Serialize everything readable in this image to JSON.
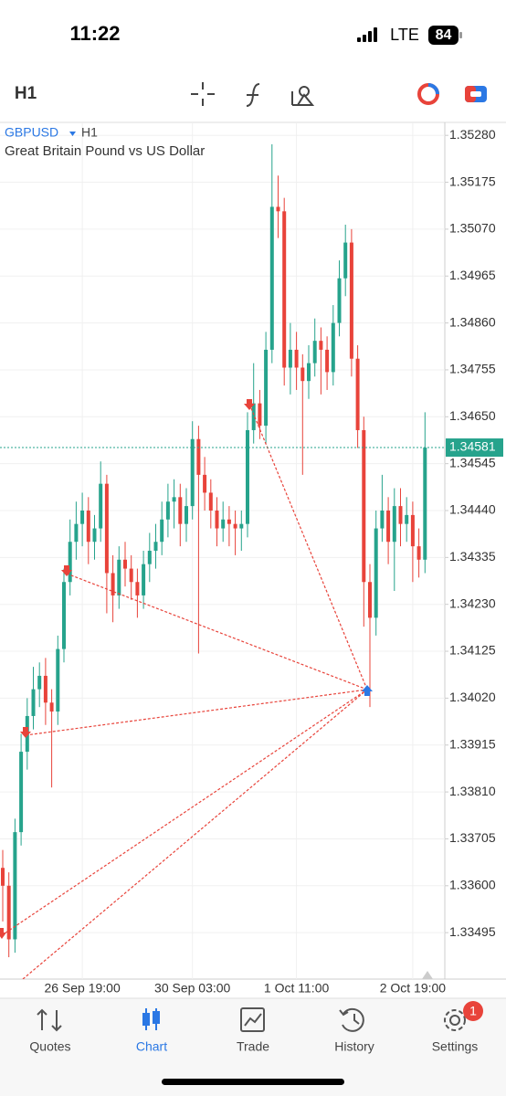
{
  "status_bar": {
    "time": "11:22",
    "network": "LTE",
    "battery": "84"
  },
  "toolbar": {
    "timeframe": "H1"
  },
  "chart_data": {
    "type": "candlestick",
    "symbol": "GBPUSD",
    "timeframe": "H1",
    "subtitle": "Great Britain Pound vs US Dollar",
    "up_color": "#26a38c",
    "down_color": "#e8433a",
    "grid": true,
    "ylim": [
      1.33391,
      1.35307
    ],
    "yticks": [
      {
        "value": 1.3528,
        "label": "1.35280"
      },
      1.35175,
      {
        "value": 1.3507,
        "label": "1.35070"
      },
      1.34965,
      {
        "value": 1.3486,
        "label": "1.34860"
      },
      1.34755,
      {
        "value": 1.3465,
        "label": "1.34650"
      },
      1.34545,
      {
        "value": 1.3444,
        "label": "1.34440"
      },
      1.34335,
      {
        "value": 1.3423,
        "label": "1.34230"
      },
      1.34125,
      {
        "value": 1.3402,
        "label": "1.34020"
      },
      1.33915,
      {
        "value": 1.3381,
        "label": "1.33810"
      },
      1.33705,
      {
        "value": 1.336,
        "label": "1.33600"
      },
      1.33495
    ],
    "categories": [
      null,
      null,
      null,
      null,
      null,
      null,
      null,
      null,
      null,
      null,
      null,
      null,
      null,
      "26 Sep 19:00",
      null,
      null,
      null,
      null,
      null,
      null,
      null,
      null,
      null,
      null,
      null,
      null,
      null,
      null,
      null,
      null,
      null,
      "30 Sep 03:00",
      null,
      null,
      null,
      null,
      null,
      null,
      null,
      null,
      null,
      null,
      null,
      null,
      null,
      null,
      null,
      null,
      "1 Oct 11:00",
      null,
      null,
      null,
      null,
      null,
      null,
      null,
      null,
      null,
      null,
      null,
      null,
      null,
      null,
      null,
      null,
      null,
      null,
      "2 Oct 19:00",
      null,
      null
    ],
    "open": [
      1.3364,
      1.336,
      1.3348,
      1.3372,
      1.339,
      1.3398,
      1.3404,
      1.3407,
      1.3401,
      1.3399,
      1.3413,
      1.3428,
      1.3437,
      1.3441,
      1.3444,
      1.3437,
      1.344,
      1.345,
      1.343,
      1.3425,
      1.3433,
      1.3431,
      1.3428,
      1.3425,
      1.3432,
      1.3435,
      1.3437,
      1.3442,
      1.3446,
      1.3447,
      1.3441,
      1.3445,
      1.346,
      1.3452,
      1.3448,
      1.3444,
      1.344,
      1.3442,
      1.3441,
      1.344,
      1.3441,
      1.3462,
      1.3468,
      1.3463,
      1.348,
      1.3512,
      1.3511,
      1.3476,
      1.348,
      1.3476,
      1.3473,
      1.3477,
      1.3482,
      1.348,
      1.3475,
      1.3486,
      1.3496,
      1.3504,
      1.3478,
      1.3462,
      1.3428,
      1.342,
      1.344,
      1.3444,
      1.3437,
      1.3445,
      1.3441,
      1.3443,
      1.3436,
      1.3433
    ],
    "high": [
      1.3368,
      1.3363,
      1.3375,
      1.3394,
      1.3402,
      1.3409,
      1.341,
      1.3411,
      1.3404,
      1.3416,
      1.3431,
      1.3442,
      1.3446,
      1.3448,
      1.3447,
      1.3443,
      1.3455,
      1.3452,
      1.3434,
      1.3436,
      1.3437,
      1.3434,
      1.3431,
      1.3435,
      1.3439,
      1.3441,
      1.3446,
      1.345,
      1.3451,
      1.345,
      1.3449,
      1.3464,
      1.3463,
      1.3456,
      1.3451,
      1.3447,
      1.3446,
      1.3445,
      1.3444,
      1.3444,
      1.3466,
      1.3477,
      1.3471,
      1.3484,
      1.3526,
      1.3519,
      1.3514,
      1.3486,
      1.3484,
      1.3479,
      1.3481,
      1.3487,
      1.3485,
      1.3483,
      1.349,
      1.35,
      1.3508,
      1.3507,
      1.3481,
      1.3465,
      1.3432,
      1.3444,
      1.3452,
      1.3447,
      1.3449,
      1.3449,
      1.3447,
      1.3446,
      1.344,
      1.3466
    ],
    "low": [
      1.3352,
      1.3344,
      1.3345,
      1.3369,
      1.3386,
      1.3395,
      1.34,
      1.3396,
      1.3382,
      1.3396,
      1.341,
      1.3425,
      1.3433,
      1.3436,
      1.3432,
      1.3433,
      1.3437,
      1.3421,
      1.3419,
      1.3422,
      1.3427,
      1.3424,
      1.342,
      1.3422,
      1.3428,
      1.3431,
      1.3434,
      1.3438,
      1.344,
      1.3436,
      1.3437,
      1.3442,
      1.3412,
      1.3444,
      1.344,
      1.3436,
      1.3437,
      1.3436,
      1.3434,
      1.3435,
      1.3438,
      1.3459,
      1.346,
      1.3459,
      1.3477,
      1.3505,
      1.3472,
      1.347,
      1.3471,
      1.3452,
      1.3469,
      1.3474,
      1.347,
      1.3471,
      1.3472,
      1.3483,
      1.3492,
      1.3474,
      1.3458,
      1.3418,
      1.34,
      1.3416,
      1.3437,
      1.3432,
      1.3426,
      1.3436,
      1.3437,
      1.3428,
      1.3429,
      1.343
    ],
    "close": [
      1.336,
      1.3348,
      1.3372,
      1.339,
      1.3398,
      1.3404,
      1.3407,
      1.3401,
      1.3399,
      1.3413,
      1.3428,
      1.3437,
      1.3441,
      1.3444,
      1.3437,
      1.344,
      1.345,
      1.343,
      1.3425,
      1.3433,
      1.3431,
      1.3428,
      1.3425,
      1.3432,
      1.3435,
      1.3437,
      1.3442,
      1.3446,
      1.3447,
      1.3441,
      1.3445,
      1.346,
      1.3452,
      1.3448,
      1.3444,
      1.344,
      1.3442,
      1.3441,
      1.344,
      1.3441,
      1.3462,
      1.3468,
      1.3463,
      1.348,
      1.3512,
      1.3511,
      1.3476,
      1.348,
      1.3476,
      1.3473,
      1.3477,
      1.3482,
      1.348,
      1.3475,
      1.3486,
      1.3496,
      1.3504,
      1.3478,
      1.3462,
      1.3428,
      1.342,
      1.344,
      1.3444,
      1.3437,
      1.3445,
      1.3441,
      1.3443,
      1.3436,
      1.3433,
      1.34581
    ]
  },
  "nav": {
    "items": [
      "Quotes",
      "Chart",
      "Trade",
      "History",
      "Settings"
    ],
    "active": 1,
    "badge": "1"
  }
}
